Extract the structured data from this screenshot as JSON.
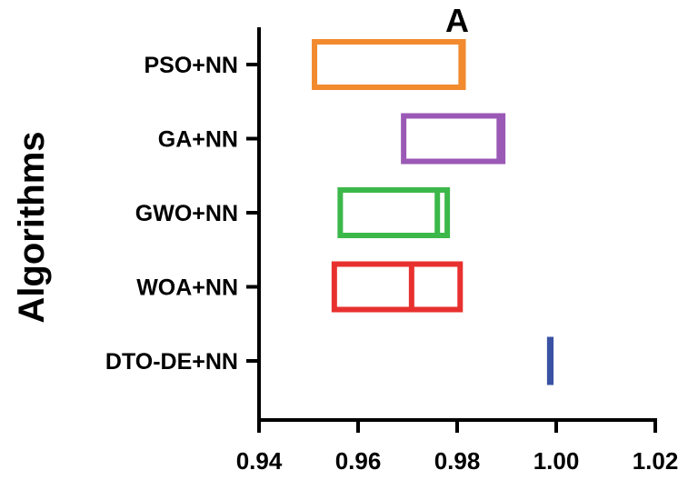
{
  "chart_data": {
    "type": "box",
    "orientation": "horizontal",
    "title": "A",
    "xlabel": "",
    "ylabel": "Algorithms",
    "xlim": [
      0.94,
      1.02
    ],
    "xticks": [
      0.94,
      0.96,
      0.98,
      1.0,
      1.02
    ],
    "xtick_labels": [
      "0.94",
      "0.96",
      "0.98",
      "1.00",
      "1.02"
    ],
    "categories": [
      "PSO+NN",
      "GA+NN",
      "GWO+NN",
      "WOA+NN",
      "DTO-DE+NN"
    ],
    "series": [
      {
        "name": "PSO+NN",
        "q1": 0.9512,
        "median": 0.9808,
        "q3": 0.9812,
        "color": "#f28a2e"
      },
      {
        "name": "GA+NN",
        "q1": 0.9692,
        "median": 0.9885,
        "q3": 0.9892,
        "color": "#9b59b6"
      },
      {
        "name": "GWO+NN",
        "q1": 0.9564,
        "median": 0.976,
        "q3": 0.978,
        "color": "#3cb84a"
      },
      {
        "name": "WOA+NN",
        "q1": 0.9552,
        "median": 0.9708,
        "q3": 0.9806,
        "color": "#e8312f"
      },
      {
        "name": "DTO-DE+NN",
        "q1": 0.9986,
        "median": 0.9988,
        "q3": 0.999,
        "color": "#3a52a4"
      }
    ]
  }
}
